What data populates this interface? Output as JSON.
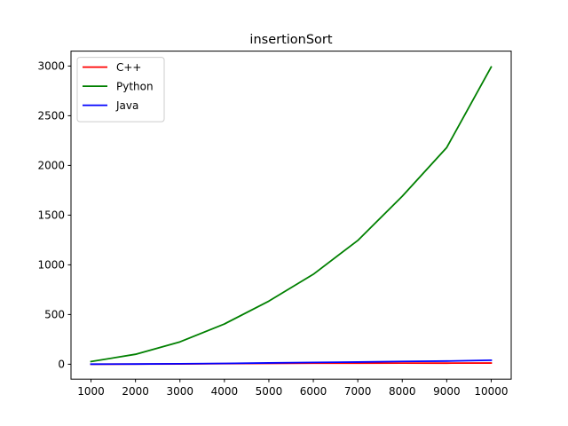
{
  "chart_data": {
    "type": "line",
    "title": "insertionSort",
    "xlabel": "",
    "ylabel": "",
    "x": [
      1000,
      2000,
      3000,
      4000,
      5000,
      6000,
      7000,
      8000,
      9000,
      10000
    ],
    "xlim": [
      550,
      10450
    ],
    "ylim": [
      -150,
      3150
    ],
    "xticks": [
      1000,
      2000,
      3000,
      4000,
      5000,
      6000,
      7000,
      8000,
      9000,
      10000
    ],
    "yticks": [
      0,
      500,
      1000,
      1500,
      2000,
      2500,
      3000
    ],
    "grid": false,
    "legend": "upper-left",
    "series": [
      {
        "name": "C++",
        "color": "#ff0000",
        "values": [
          0.4,
          1.5,
          3.0,
          5.5,
          8.5,
          10,
          11,
          11.5,
          11,
          12
        ]
      },
      {
        "name": "Python",
        "color": "#008000",
        "values": [
          27,
          100,
          225,
          405,
          635,
          905,
          1245,
          1690,
          2180,
          2990
        ]
      },
      {
        "name": "Java",
        "color": "#0000ff",
        "values": [
          0.8,
          2,
          4.5,
          8,
          13,
          18,
          22,
          28,
          32,
          40
        ]
      }
    ]
  }
}
